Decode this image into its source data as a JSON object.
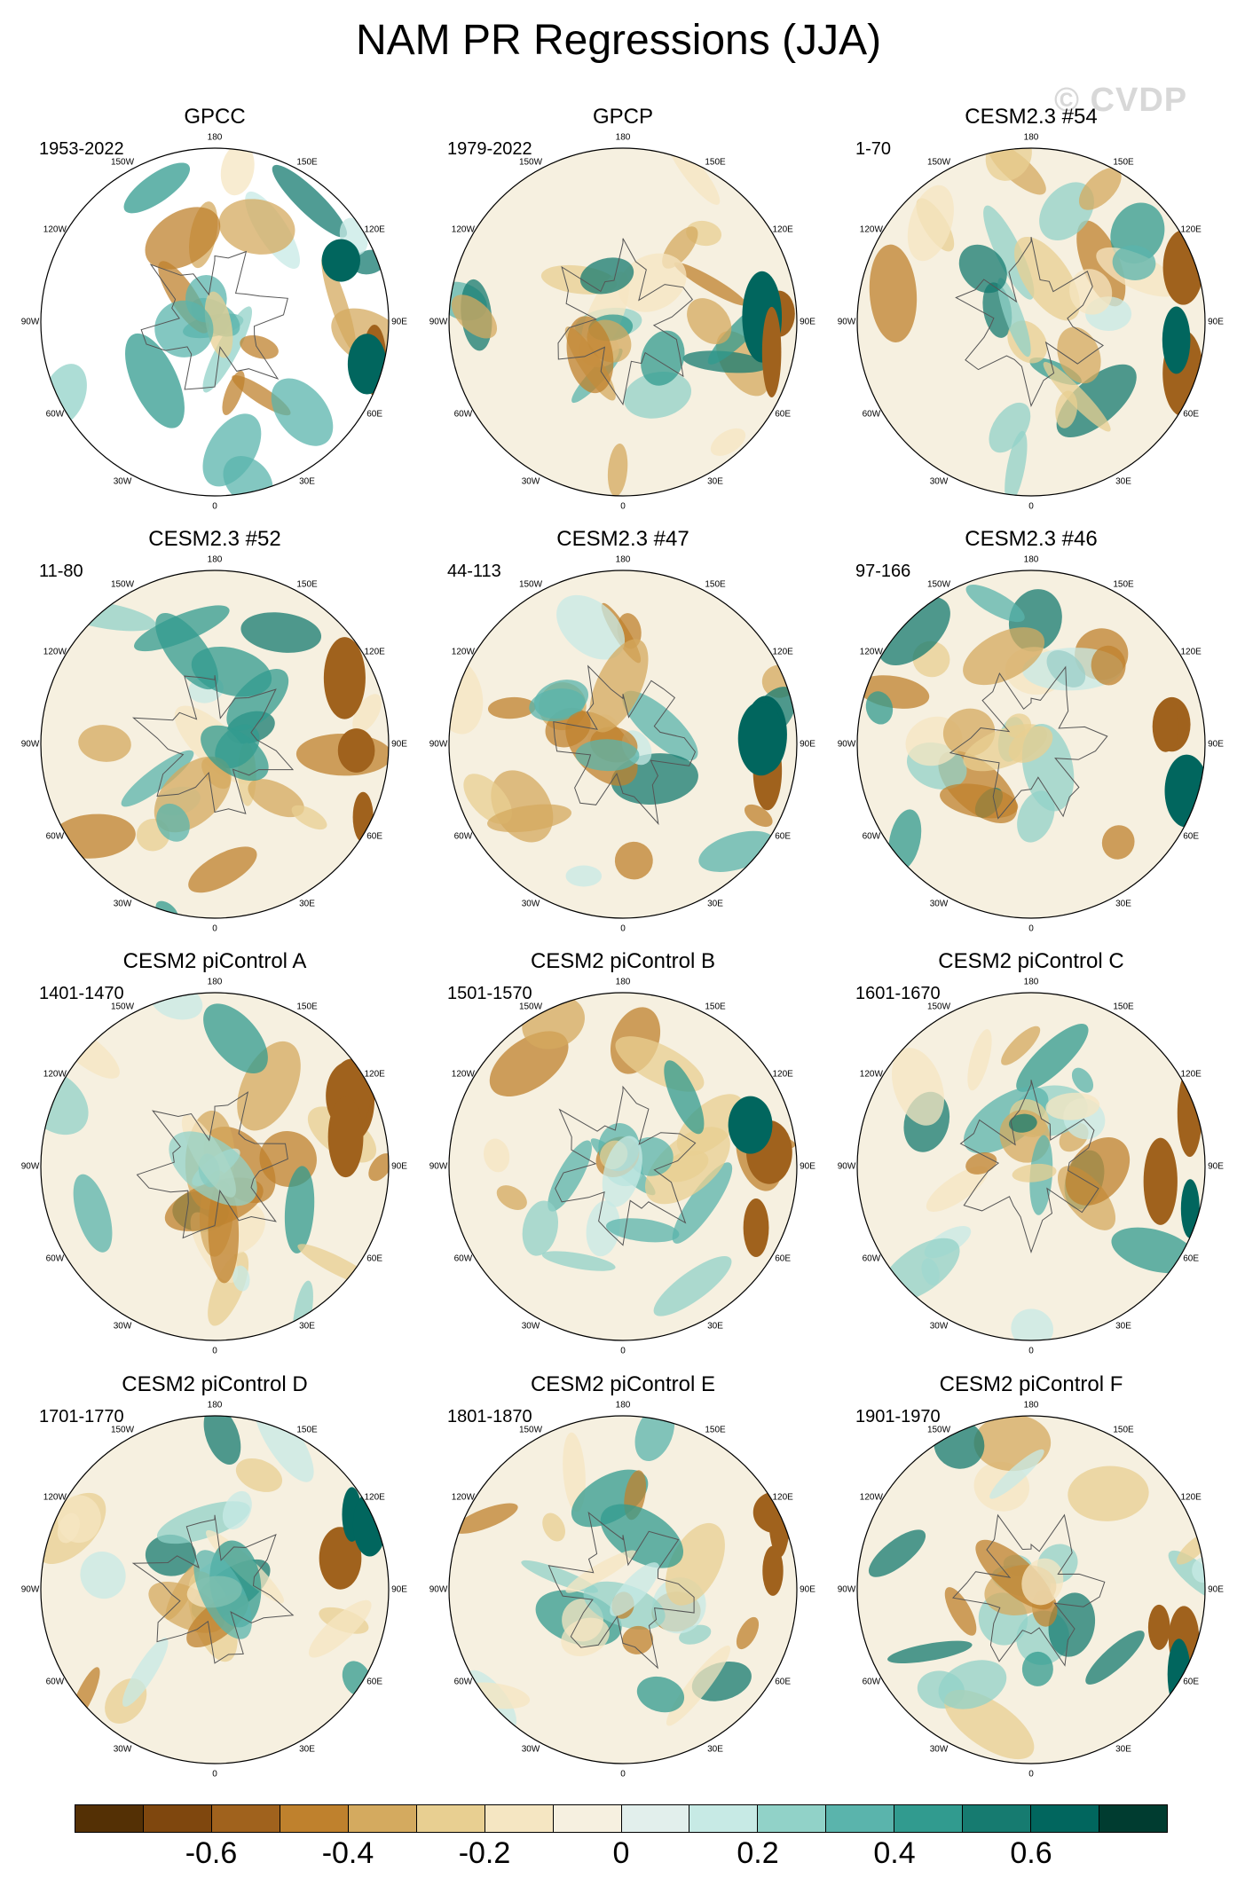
{
  "title": "NAM PR Regressions (JJA)",
  "watermark": "© CVDP",
  "longitude_labels": [
    "180",
    "150E",
    "120E",
    "90E",
    "60E",
    "30E",
    "0",
    "30W",
    "60W",
    "90W",
    "120W",
    "150W"
  ],
  "panels": [
    {
      "title": "GPCC",
      "period": "1953-2022"
    },
    {
      "title": "GPCP",
      "period": "1979-2022"
    },
    {
      "title": "CESM2.3 #54",
      "period": "1-70"
    },
    {
      "title": "CESM2.3 #52",
      "period": "11-80"
    },
    {
      "title": "CESM2.3 #47",
      "period": "44-113"
    },
    {
      "title": "CESM2.3 #46",
      "period": "97-166"
    },
    {
      "title": "CESM2 piControl A",
      "period": "1401-1470"
    },
    {
      "title": "CESM2 piControl B",
      "period": "1501-1570"
    },
    {
      "title": "CESM2 piControl C",
      "period": "1601-1670"
    },
    {
      "title": "CESM2 piControl D",
      "period": "1701-1770"
    },
    {
      "title": "CESM2 piControl E",
      "period": "1801-1870"
    },
    {
      "title": "CESM2 piControl F",
      "period": "1901-1970"
    }
  ],
  "colorbar": {
    "colors": [
      "#543005",
      "#7f470e",
      "#a0621d",
      "#bf812d",
      "#d4aa5f",
      "#e8cf91",
      "#f5e6c2",
      "#f6f0e0",
      "#e2efec",
      "#c7eae5",
      "#91d2c8",
      "#5ab4ac",
      "#319b8f",
      "#167b70",
      "#01665e",
      "#003c30"
    ],
    "labels": [
      "-0.6",
      "-0.4",
      "-0.2",
      "0",
      "0.2",
      "0.4",
      "0.6"
    ]
  }
}
